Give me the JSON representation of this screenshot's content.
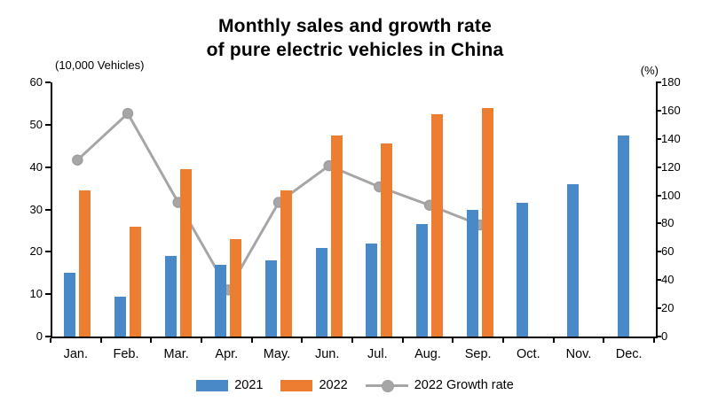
{
  "title": {
    "line1": "Monthly sales and growth rate",
    "line2": "of pure electric vehicles in China"
  },
  "axes": {
    "left_unit": "(10,000 Vehicles)",
    "right_unit": "(%)",
    "left_ticks": [
      0,
      10,
      20,
      30,
      40,
      50,
      60
    ],
    "right_ticks": [
      0,
      20,
      40,
      60,
      80,
      100,
      120,
      140,
      160,
      180
    ]
  },
  "chart_data": {
    "type": "bar+line",
    "title": "Monthly sales and growth rate of pure electric vehicles in China",
    "categories": [
      "Jan.",
      "Feb.",
      "Mar.",
      "Apr.",
      "May.",
      "Jun.",
      "Jul.",
      "Aug.",
      "Sep.",
      "Oct.",
      "Nov.",
      "Dec."
    ],
    "series": [
      {
        "name": "2021",
        "type": "bar",
        "axis": "left",
        "color": "#4A89C8",
        "values": [
          15,
          9.5,
          19,
          17,
          18,
          21,
          22,
          26.5,
          30,
          31.5,
          36,
          47.5
        ]
      },
      {
        "name": "2022",
        "type": "bar",
        "axis": "left",
        "color": "#ED7D31",
        "values": [
          34.5,
          26,
          39.5,
          23,
          34.5,
          47.5,
          45.5,
          52.5,
          54,
          null,
          null,
          null
        ]
      },
      {
        "name": "2022 Growth rate",
        "type": "line",
        "axis": "right",
        "color": "#A6A6A6",
        "marker_color": "#9E9E9E",
        "values": [
          125,
          158,
          95,
          33,
          95,
          121,
          106,
          93,
          79,
          null,
          null,
          null
        ]
      }
    ],
    "ylabel_left": "(10,000 Vehicles)",
    "ylabel_right": "(%)",
    "ylim_left": [
      0,
      60
    ],
    "ylim_right": [
      0,
      180
    ],
    "legend_position": "bottom",
    "grid": false
  }
}
